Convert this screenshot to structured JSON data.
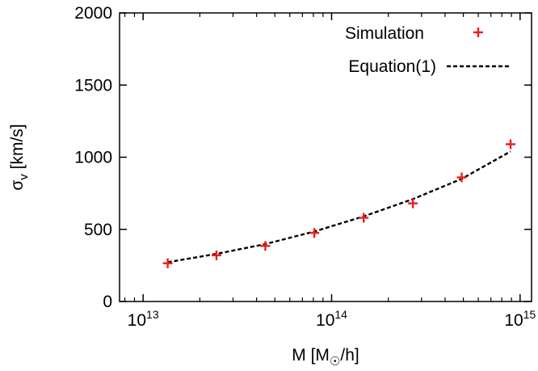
{
  "chart_data": {
    "type": "scatter",
    "title": "",
    "xlabel": "M [M☉/h]",
    "xlabel_parts": {
      "main": "M [M",
      "sub": "☉",
      "tail": "/h]"
    },
    "ylabel": "σv [km/s]",
    "ylabel_parts": {
      "main": "σ",
      "sub": "v",
      "tail": " [km/s]"
    },
    "xscale": "log",
    "xlim": [
      7500000000000.0,
      1150000000000000.0
    ],
    "ylim": [
      0,
      2000
    ],
    "xticks": [
      {
        "value": 10000000000000.0,
        "base": "10",
        "exp": "13"
      },
      {
        "value": 100000000000000.0,
        "base": "10",
        "exp": "14"
      },
      {
        "value": 1000000000000000.0,
        "base": "10",
        "exp": "15"
      }
    ],
    "yticks": [
      {
        "value": 0,
        "label": "0"
      },
      {
        "value": 500,
        "label": "500"
      },
      {
        "value": 1000,
        "label": "1000"
      },
      {
        "value": 1500,
        "label": "1500"
      },
      {
        "value": 2000,
        "label": "2000"
      }
    ],
    "legend_position": "top-right",
    "series": [
      {
        "name": "Simulation",
        "style": "markers",
        "marker": "plus",
        "color": "#ee1c1c",
        "x": [
          13500000000000.0,
          24500000000000.0,
          44500000000000.0,
          81000000000000.0,
          148000000000000.0,
          270000000000000.0,
          490000000000000.0,
          890000000000000.0
        ],
        "y": [
          265,
          320,
          385,
          475,
          580,
          680,
          860,
          1090
        ]
      },
      {
        "name": "Equation(1)",
        "style": "dashed-line",
        "color": "#000000",
        "x": [
          13500000000000.0,
          24500000000000.0,
          44500000000000.0,
          81000000000000.0,
          148000000000000.0,
          270000000000000.0,
          490000000000000.0,
          890000000000000.0
        ],
        "y": [
          272,
          330,
          398,
          485,
          590,
          710,
          850,
          1040
        ]
      }
    ]
  }
}
